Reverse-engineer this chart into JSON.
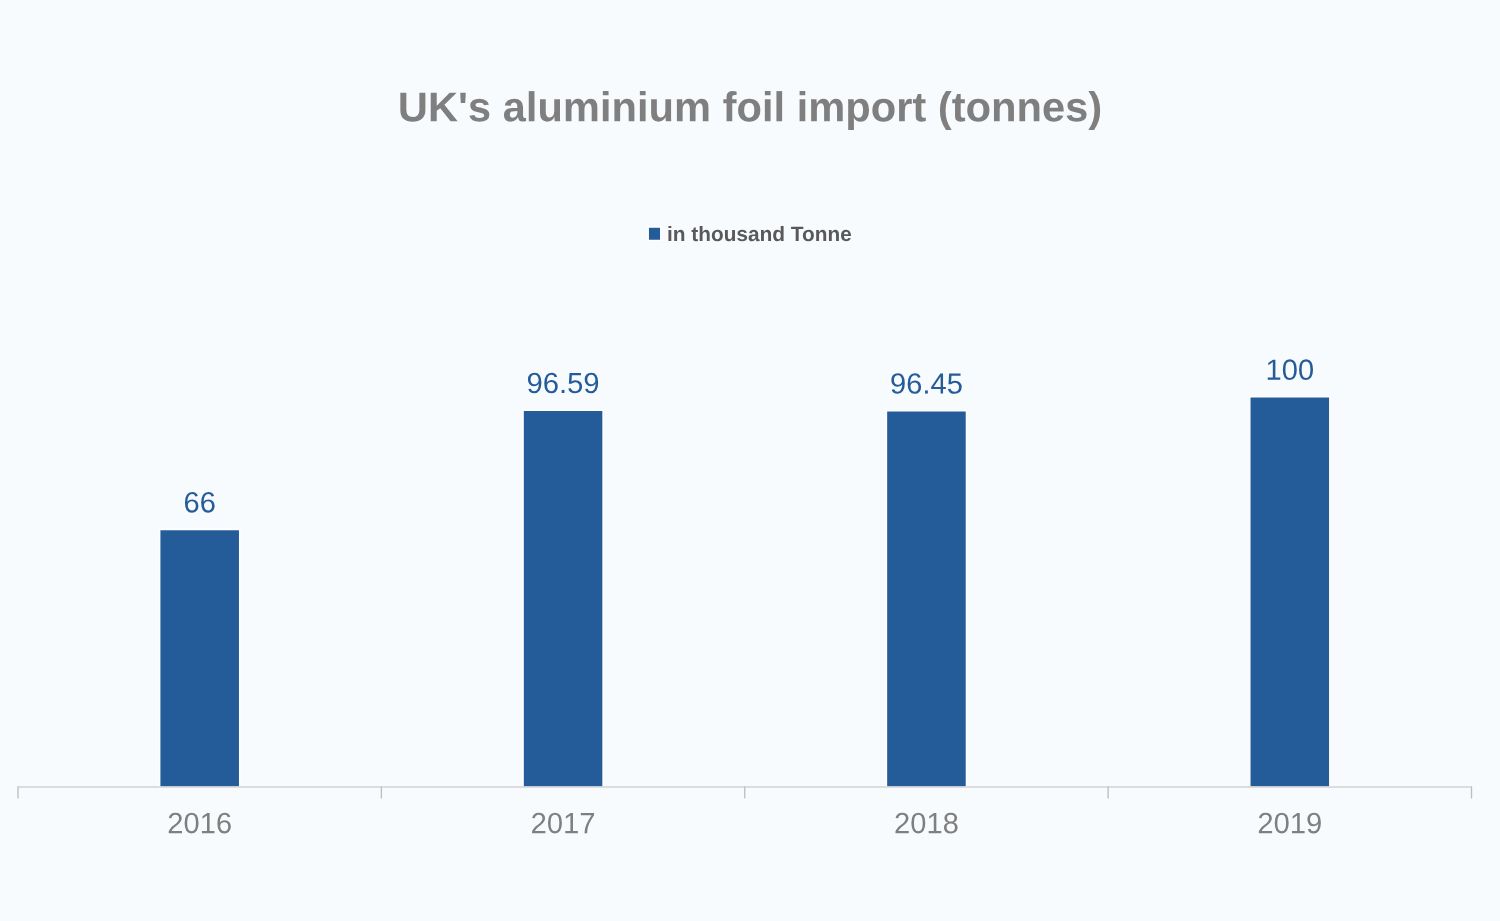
{
  "chart_data": {
    "type": "bar",
    "title": "UK's aluminium foil import (tonnes)",
    "categories": [
      "2016",
      "2017",
      "2018",
      "2019"
    ],
    "series": [
      {
        "name": "in thousand Tonne",
        "color": "#245b99",
        "values": [
          66,
          96.59,
          96.45,
          100
        ]
      }
    ],
    "data_labels": true,
    "legend": "top",
    "grid": false,
    "tick_labels": "x"
  }
}
